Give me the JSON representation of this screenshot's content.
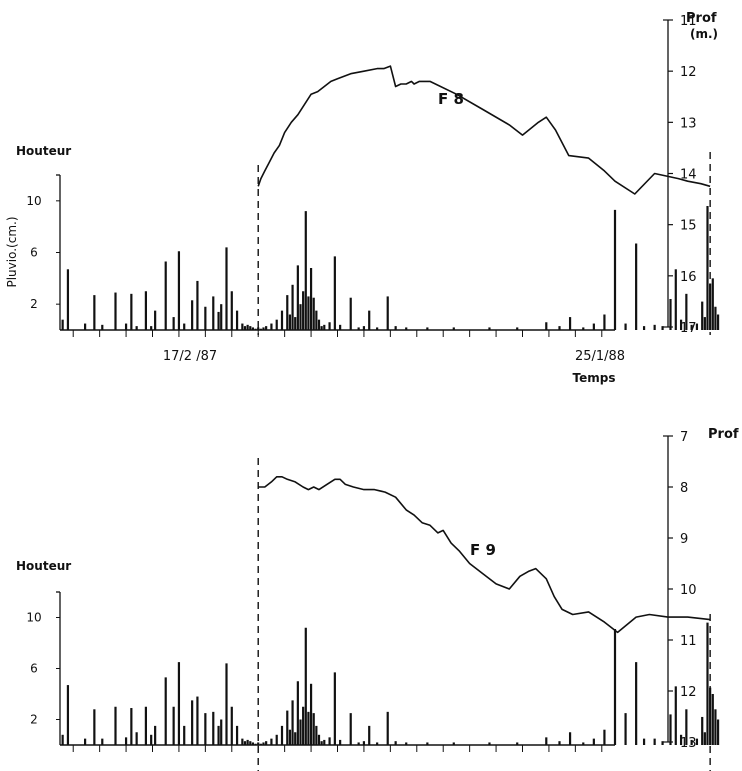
{
  "chart_data": [
    {
      "type": "line",
      "name": "F 8",
      "depth_axis": {
        "label_line1": "Prof",
        "label_line2": "(m.)",
        "ticks": [
          11,
          12,
          13,
          14,
          15,
          16,
          17
        ],
        "range": [
          11,
          17
        ],
        "inverted": true
      },
      "rain_axis": {
        "title": "Houteur",
        "label": "Pluvio.(cm.)",
        "ticks": [
          2,
          6,
          10
        ],
        "range": [
          0,
          12
        ]
      },
      "time_axis": {
        "label": "Temps",
        "start_label": "17/2 /87",
        "end_label": "25/1/88",
        "range_days": [
          -150,
          270
        ],
        "start_day": 0,
        "end_day": 342
      },
      "depth_series": {
        "x": [
          0,
          2,
          5,
          8,
          12,
          16,
          20,
          25,
          30,
          35,
          40,
          45,
          50,
          55,
          60,
          70,
          80,
          90,
          95,
          100,
          104,
          108,
          112,
          116,
          118,
          122,
          130,
          150,
          170,
          190,
          200,
          212,
          218,
          225,
          235,
          250,
          262,
          270,
          285,
          300,
          318,
          325,
          335,
          342
        ],
        "y": [
          14.25,
          14.1,
          13.95,
          13.8,
          13.6,
          13.45,
          13.2,
          13.0,
          12.85,
          12.65,
          12.45,
          12.4,
          12.3,
          12.2,
          12.15,
          12.05,
          12.0,
          11.95,
          11.95,
          11.9,
          12.3,
          12.25,
          12.25,
          12.2,
          12.25,
          12.2,
          12.2,
          12.45,
          12.75,
          13.05,
          13.25,
          13.0,
          12.9,
          13.15,
          13.65,
          13.7,
          13.95,
          14.15,
          14.4,
          14.0,
          14.1,
          14.15,
          14.2,
          14.25
        ]
      },
      "rain_series": {
        "x": [
          -148,
          -144,
          -131,
          -124,
          -118,
          -108,
          -100,
          -96,
          -92,
          -85,
          -81,
          -78,
          -70,
          -64,
          -60,
          -56,
          -50,
          -46,
          -40,
          -34,
          -30,
          -28,
          -24,
          -20,
          -16,
          -12,
          -10,
          -8,
          -6,
          -4,
          -2,
          0,
          2,
          4,
          6,
          10,
          14,
          18,
          22,
          24,
          26,
          28,
          30,
          32,
          34,
          36,
          38,
          40,
          42,
          44,
          46,
          48,
          50,
          54,
          58,
          62,
          70,
          76,
          80,
          84,
          90,
          98,
          104,
          112,
          128,
          148,
          175,
          196,
          218,
          228,
          236,
          246,
          254,
          262,
          270,
          278,
          286,
          292,
          300,
          306,
          312,
          316,
          320,
          324,
          328,
          332,
          336,
          338,
          340,
          342,
          344,
          346,
          348
        ],
        "y": [
          0.8,
          4.7,
          0.5,
          2.7,
          0.4,
          2.9,
          0.5,
          2.8,
          0.3,
          3.0,
          0.3,
          1.5,
          5.3,
          1.0,
          6.1,
          0.5,
          2.3,
          3.8,
          1.8,
          2.6,
          1.4,
          2.0,
          6.4,
          3.0,
          1.5,
          0.5,
          0.3,
          0.4,
          0.3,
          0.2,
          0.1,
          0.2,
          0.1,
          0.2,
          0.3,
          0.5,
          0.8,
          1.5,
          2.7,
          1.2,
          3.5,
          1.0,
          5.0,
          2.0,
          3.0,
          9.2,
          2.6,
          4.8,
          2.5,
          1.5,
          0.8,
          0.3,
          0.4,
          0.6,
          5.7,
          0.4,
          2.5,
          0.2,
          0.3,
          1.5,
          0.2,
          2.6,
          0.3,
          0.2,
          0.2,
          0.2,
          0.2,
          0.2,
          0.6,
          0.3,
          1.0,
          0.2,
          0.5,
          1.2,
          9.3,
          0.5,
          6.7,
          0.3,
          0.4,
          0.3,
          2.4,
          4.7,
          0.8,
          2.8,
          0.4,
          0.5,
          2.2,
          1.0,
          9.6,
          3.6,
          4.0,
          1.8,
          1.2
        ]
      },
      "x_tick_step_days": 20
    },
    {
      "type": "line",
      "name": "F 9",
      "depth_axis": {
        "label_line1": "Prof",
        "ticks": [
          7,
          8,
          9,
          10,
          11,
          12,
          13
        ],
        "range": [
          7,
          13
        ],
        "inverted": true
      },
      "rain_axis": {
        "title": "Houteur",
        "ticks": [
          2,
          6,
          10
        ],
        "range": [
          0,
          12
        ]
      },
      "time_axis": {
        "range_days": [
          -150,
          270
        ],
        "start_day": 0,
        "end_day": 342
      },
      "depth_series": {
        "x": [
          0,
          5,
          10,
          14,
          18,
          22,
          28,
          34,
          38,
          42,
          46,
          52,
          58,
          62,
          66,
          72,
          80,
          88,
          96,
          104,
          112,
          118,
          124,
          130,
          136,
          140,
          146,
          152,
          160,
          170,
          180,
          190,
          198,
          205,
          210,
          218,
          224,
          230,
          238,
          250,
          262,
          272,
          286,
          296,
          310,
          325,
          342
        ],
        "y": [
          8.0,
          8.0,
          7.9,
          7.8,
          7.8,
          7.85,
          7.9,
          8.0,
          8.05,
          8.0,
          8.05,
          7.95,
          7.85,
          7.85,
          7.95,
          8.0,
          8.05,
          8.05,
          8.1,
          8.2,
          8.45,
          8.55,
          8.7,
          8.75,
          8.9,
          8.85,
          9.1,
          9.25,
          9.5,
          9.7,
          9.9,
          10.0,
          9.75,
          9.65,
          9.6,
          9.8,
          10.15,
          10.4,
          10.5,
          10.45,
          10.65,
          10.85,
          10.55,
          10.5,
          10.55,
          10.55,
          10.6
        ]
      },
      "rain_series": {
        "x": [
          -148,
          -144,
          -131,
          -124,
          -118,
          -108,
          -100,
          -96,
          -92,
          -85,
          -81,
          -78,
          -70,
          -64,
          -60,
          -56,
          -50,
          -46,
          -40,
          -34,
          -30,
          -28,
          -24,
          -20,
          -16,
          -12,
          -10,
          -8,
          -6,
          -4,
          -2,
          0,
          2,
          4,
          6,
          10,
          14,
          18,
          22,
          24,
          26,
          28,
          30,
          32,
          34,
          36,
          38,
          40,
          42,
          44,
          46,
          48,
          50,
          54,
          58,
          62,
          70,
          76,
          80,
          84,
          90,
          98,
          104,
          112,
          128,
          148,
          175,
          196,
          218,
          228,
          236,
          246,
          254,
          262,
          270,
          278,
          286,
          292,
          300,
          306,
          312,
          316,
          320,
          324,
          328,
          332,
          336,
          338,
          340,
          342,
          344,
          346,
          348
        ],
        "y": [
          0.8,
          4.7,
          0.5,
          2.8,
          0.5,
          3.0,
          0.6,
          2.9,
          1.0,
          3.0,
          0.8,
          1.5,
          5.3,
          3.0,
          6.5,
          1.5,
          3.5,
          3.8,
          2.5,
          2.6,
          1.5,
          2.0,
          6.4,
          3.0,
          1.5,
          0.5,
          0.3,
          0.4,
          0.3,
          0.2,
          0.1,
          0.2,
          0.1,
          0.2,
          0.3,
          0.5,
          0.8,
          1.5,
          2.7,
          1.2,
          3.5,
          1.0,
          5.0,
          2.0,
          3.0,
          9.2,
          2.6,
          4.8,
          2.5,
          1.5,
          0.8,
          0.3,
          0.4,
          0.6,
          5.7,
          0.4,
          2.5,
          0.2,
          0.3,
          1.5,
          0.2,
          2.6,
          0.3,
          0.2,
          0.2,
          0.2,
          0.2,
          0.2,
          0.6,
          0.3,
          1.0,
          0.2,
          0.5,
          1.2,
          9.1,
          2.5,
          6.5,
          0.5,
          0.5,
          0.3,
          2.4,
          4.6,
          0.8,
          2.8,
          0.4,
          0.5,
          2.2,
          1.0,
          9.6,
          4.5,
          4.0,
          2.8,
          2.0
        ]
      },
      "x_tick_step_days": 20
    }
  ]
}
